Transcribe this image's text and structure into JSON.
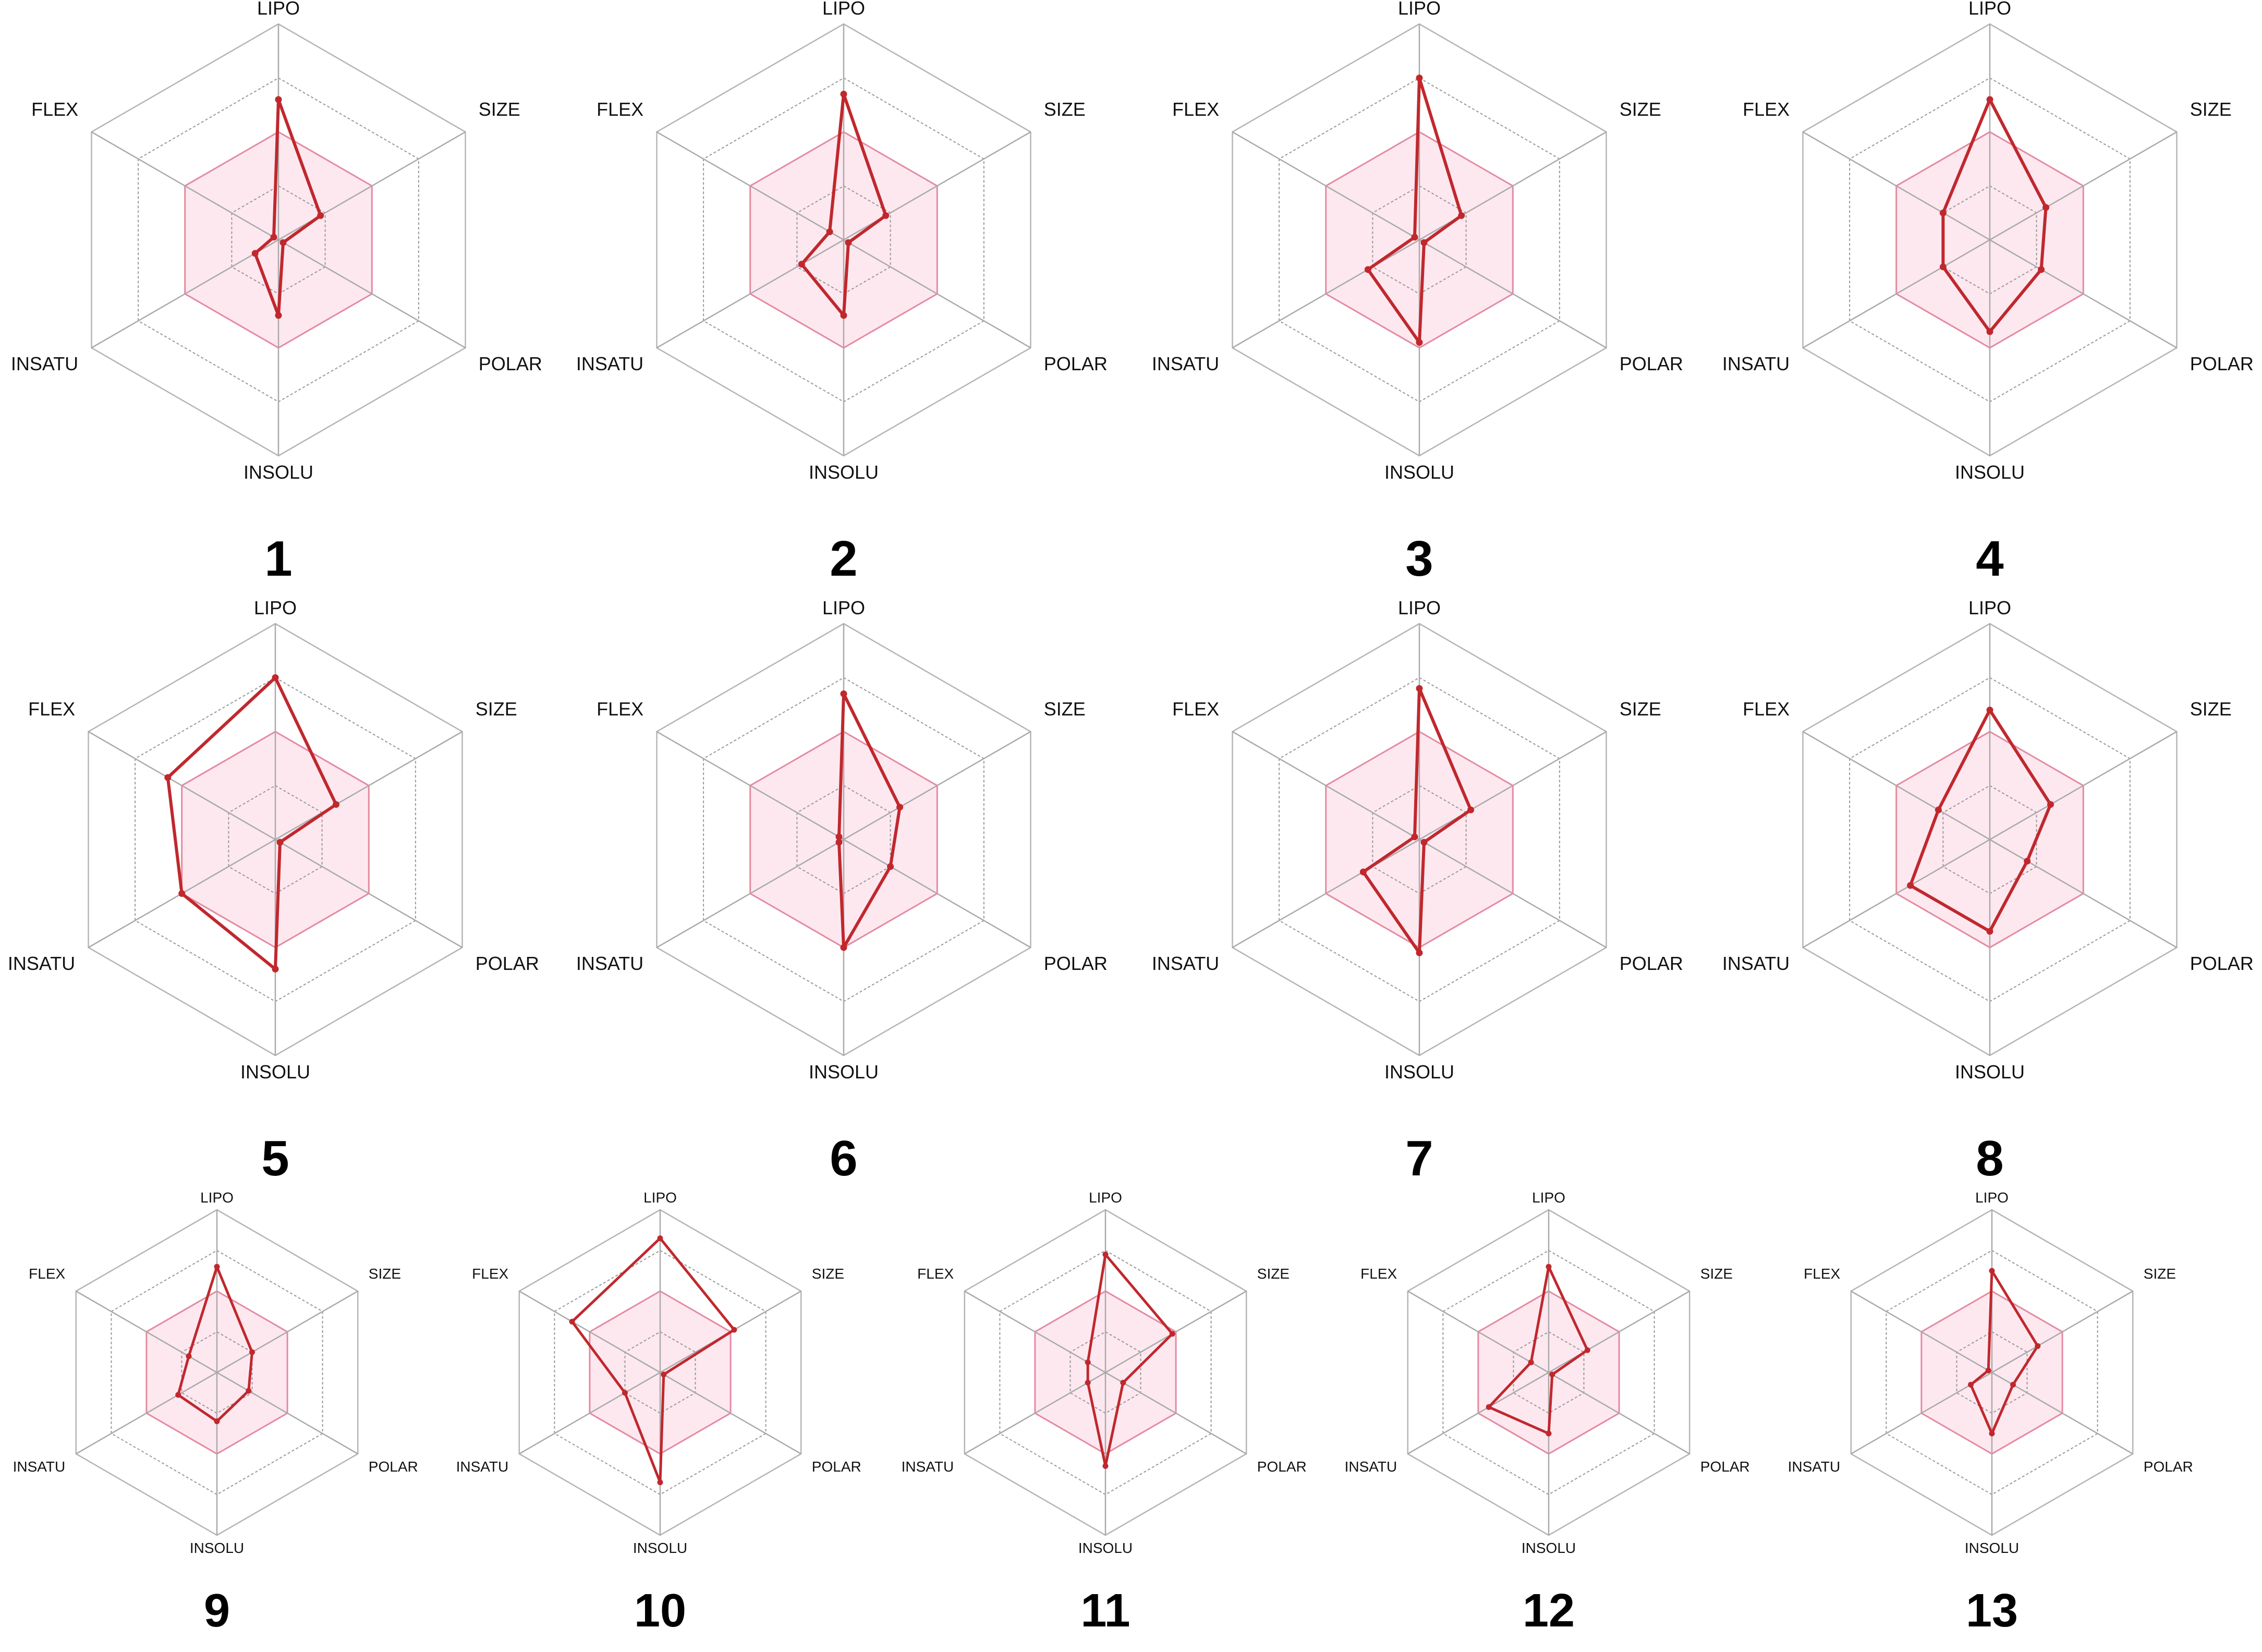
{
  "axes": [
    "LIPO",
    "SIZE",
    "POLAR",
    "INSOLU",
    "INSATU",
    "FLEX"
  ],
  "colors": {
    "line": "#c0282d",
    "band_fill": "#fde8f0",
    "band_stroke": "#e58aa0",
    "grid": "#999999",
    "spoke": "#aaaaaa"
  },
  "chart_data": [
    {
      "type": "radar",
      "label": "1",
      "scale": [
        0,
        4
      ],
      "optimal_band": 2,
      "values": {
        "LIPO": 2.6,
        "SIZE": 0.9,
        "POLAR": 0.1,
        "INSOLU": 1.4,
        "INSATU": 0.5,
        "FLEX": 0.1
      }
    },
    {
      "type": "radar",
      "label": "2",
      "scale": [
        0,
        4
      ],
      "optimal_band": 2,
      "values": {
        "LIPO": 2.7,
        "SIZE": 0.9,
        "POLAR": 0.1,
        "INSOLU": 1.4,
        "INSATU": 0.9,
        "FLEX": 0.3
      }
    },
    {
      "type": "radar",
      "label": "3",
      "scale": [
        0,
        4
      ],
      "optimal_band": 2,
      "values": {
        "LIPO": 3.0,
        "SIZE": 0.9,
        "POLAR": 0.1,
        "INSOLU": 1.9,
        "INSATU": 1.1,
        "FLEX": 0.1
      }
    },
    {
      "type": "radar",
      "label": "4",
      "scale": [
        0,
        4
      ],
      "optimal_band": 2,
      "values": {
        "LIPO": 2.6,
        "SIZE": 1.2,
        "POLAR": 1.1,
        "INSOLU": 1.7,
        "INSATU": 1.0,
        "FLEX": 1.0
      }
    },
    {
      "type": "radar",
      "label": "5",
      "scale": [
        0,
        4
      ],
      "optimal_band": 2,
      "values": {
        "LIPO": 3.0,
        "SIZE": 1.3,
        "POLAR": 0.1,
        "INSOLU": 2.4,
        "INSATU": 2.0,
        "FLEX": 2.3
      }
    },
    {
      "type": "radar",
      "label": "6",
      "scale": [
        0,
        4
      ],
      "optimal_band": 2,
      "values": {
        "LIPO": 2.7,
        "SIZE": 1.2,
        "POLAR": 1.0,
        "INSOLU": 2.0,
        "INSATU": 0.1,
        "FLEX": 0.1
      }
    },
    {
      "type": "radar",
      "label": "7",
      "scale": [
        0,
        4
      ],
      "optimal_band": 2,
      "values": {
        "LIPO": 2.8,
        "SIZE": 1.1,
        "POLAR": 0.1,
        "INSOLU": 2.1,
        "INSATU": 1.2,
        "FLEX": 0.1
      }
    },
    {
      "type": "radar",
      "label": "8",
      "scale": [
        0,
        4
      ],
      "optimal_band": 2,
      "values": {
        "LIPO": 2.4,
        "SIZE": 1.3,
        "POLAR": 0.8,
        "INSOLU": 1.7,
        "INSATU": 1.7,
        "FLEX": 1.1
      }
    },
    {
      "type": "radar",
      "label": "9",
      "scale": [
        0,
        4
      ],
      "optimal_band": 2,
      "values": {
        "LIPO": 2.6,
        "SIZE": 1.0,
        "POLAR": 0.9,
        "INSOLU": 1.2,
        "INSATU": 1.1,
        "FLEX": 0.8
      }
    },
    {
      "type": "radar",
      "label": "10",
      "scale": [
        0,
        4
      ],
      "optimal_band": 2,
      "values": {
        "LIPO": 3.3,
        "SIZE": 2.1,
        "POLAR": 0.1,
        "INSOLU": 2.7,
        "INSATU": 1.0,
        "FLEX": 2.5
      }
    },
    {
      "type": "radar",
      "label": "11",
      "scale": [
        0,
        4
      ],
      "optimal_band": 2,
      "values": {
        "LIPO": 2.9,
        "SIZE": 1.9,
        "POLAR": 0.5,
        "INSOLU": 2.3,
        "INSATU": 0.5,
        "FLEX": 0.5
      }
    },
    {
      "type": "radar",
      "label": "12",
      "scale": [
        0,
        4
      ],
      "optimal_band": 2,
      "values": {
        "LIPO": 2.6,
        "SIZE": 1.1,
        "POLAR": 0.1,
        "INSOLU": 1.5,
        "INSATU": 1.7,
        "FLEX": 0.5
      }
    },
    {
      "type": "radar",
      "label": "13",
      "scale": [
        0,
        4
      ],
      "optimal_band": 2,
      "values": {
        "LIPO": 2.5,
        "SIZE": 1.3,
        "POLAR": 0.6,
        "INSOLU": 1.5,
        "INSATU": 0.6,
        "FLEX": 0.1
      }
    }
  ]
}
